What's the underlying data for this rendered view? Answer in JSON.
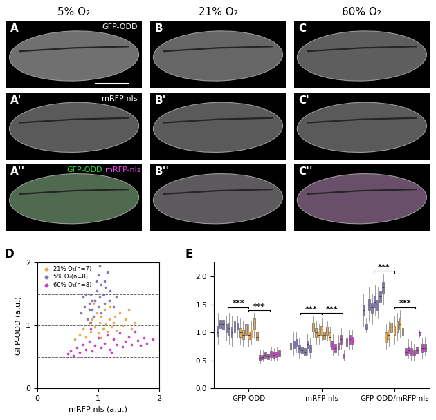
{
  "column_headers": [
    "5% O₂",
    "21% O₂",
    "60% O₂"
  ],
  "image_rows": [
    {
      "panel_labels": [
        "A",
        "B",
        "C"
      ],
      "channel_texts": [
        {
          "text": "GFP-ODD",
          "color": "#ffffff"
        }
      ]
    },
    {
      "panel_labels": [
        "A'",
        "B'",
        "C'"
      ],
      "channel_texts": [
        {
          "text": "mRFP-nls",
          "color": "#ffffff"
        }
      ]
    },
    {
      "panel_labels": [
        "A''",
        "B''",
        "C''"
      ],
      "channel_texts": [
        {
          "text": "GFP-ODD",
          "color": "#33dd33"
        },
        {
          "text": "mRFP-nls",
          "color": "#ee44ee"
        }
      ]
    }
  ],
  "chart_data": [
    {
      "type": "scatter",
      "panel_label": "D",
      "x_label": "mRFP-nls (a.u.)",
      "y_label": "GFP-ODD (a.u.)",
      "xlim": [
        0,
        2
      ],
      "xticks": [
        0,
        1,
        2
      ],
      "ylim": [
        0,
        2
      ],
      "yticks": [
        0,
        1,
        2
      ],
      "marker": "o",
      "legend": "upper left",
      "reference_lines": {
        "values": [
          0.5,
          1,
          1.5
        ],
        "line_style": "dashed"
      },
      "series": [
        {
          "name": "21% O₂(n=7)",
          "color": "#e8a94f",
          "x": [
            0.62,
            0.7,
            0.75,
            0.8,
            0.85,
            0.88,
            0.9,
            0.95,
            0.98,
            1.0,
            1.02,
            1.05,
            1.08,
            1.1,
            1.12,
            1.15,
            1.18,
            1.2,
            1.22,
            1.25,
            1.28,
            1.3,
            1.35,
            1.4,
            1.45,
            1.5,
            1.55,
            1.6,
            0.92,
            1.05
          ],
          "y": [
            0.78,
            0.85,
            0.95,
            0.82,
            1.05,
            0.9,
            1.1,
            0.98,
            1.2,
            0.88,
            1.05,
            1.15,
            0.95,
            1.25,
            1.02,
            0.9,
            1.1,
            1.3,
            0.98,
            1.05,
            1.15,
            0.92,
            1.2,
            1.0,
            1.1,
            1.25,
            0.95,
            1.05,
            1.35,
            0.8
          ]
        },
        {
          "name": "5% O₂(n=8)",
          "color": "#7b77c0",
          "x": [
            0.72,
            0.75,
            0.78,
            0.8,
            0.82,
            0.85,
            0.85,
            0.88,
            0.9,
            0.9,
            0.92,
            0.95,
            0.97,
            0.98,
            1.0,
            1.0,
            1.02,
            1.05,
            1.05,
            1.08,
            1.1,
            1.12,
            1.15,
            1.18,
            1.2,
            1.25,
            1.3,
            0.88,
            1.03,
            1.1
          ],
          "y": [
            1.2,
            1.45,
            1.3,
            1.5,
            1.1,
            1.35,
            1.25,
            1.5,
            1.4,
            1.25,
            1.15,
            1.4,
            1.7,
            1.55,
            1.3,
            1.8,
            1.45,
            1.65,
            1.2,
            1.5,
            1.35,
            1.6,
            1.85,
            1.4,
            1.55,
            1.3,
            1.45,
            1.05,
            1.95,
            1.7
          ]
        },
        {
          "name": "60% O₂(n=8)",
          "color": "#c63fc6",
          "x": [
            0.5,
            0.55,
            0.6,
            0.65,
            0.7,
            0.75,
            0.8,
            0.85,
            0.9,
            0.95,
            1.0,
            1.05,
            1.1,
            1.15,
            1.2,
            1.25,
            1.3,
            1.35,
            1.4,
            1.45,
            1.5,
            1.55,
            1.6,
            1.65,
            1.7,
            1.75,
            1.8,
            1.9,
            0.88,
            1.22
          ],
          "y": [
            0.55,
            0.6,
            0.52,
            0.65,
            0.58,
            0.7,
            0.62,
            0.75,
            0.6,
            0.68,
            0.8,
            0.65,
            0.72,
            0.85,
            0.62,
            0.78,
            0.7,
            0.88,
            0.66,
            0.75,
            0.82,
            0.7,
            0.9,
            0.76,
            0.68,
            0.8,
            0.72,
            0.78,
            0.95,
            0.58
          ]
        }
      ]
    },
    {
      "type": "box",
      "panel_label": "E",
      "categories": [
        "GFP-ODD",
        "mRFP-nls",
        "GFP-ODD/mRFP-nls"
      ],
      "ylim": [
        0,
        2.25
      ],
      "yticks": [
        {
          "value": 0,
          "label": "0.0"
        },
        {
          "value": 0.5,
          "label": "0.5"
        },
        {
          "value": 1,
          "label": "1.0"
        },
        {
          "value": 1.5,
          "label": "1.5"
        },
        {
          "value": 2,
          "label": "2.0"
        }
      ],
      "series": [
        {
          "name": "5% O₂",
          "color": "#7b77c0",
          "boxes": [
            [
              [
                0.8,
                0.93,
                1.0,
                1.12,
                1.35
              ],
              [
                0.95,
                1.08,
                1.15,
                1.22,
                1.4
              ],
              [
                0.9,
                1.05,
                1.15,
                1.22,
                1.4
              ],
              [
                0.85,
                1.0,
                1.1,
                1.15,
                1.3
              ],
              [
                0.8,
                0.95,
                1.08,
                1.18,
                1.35
              ],
              [
                0.75,
                0.9,
                1.0,
                1.1,
                1.3
              ],
              [
                0.85,
                1.0,
                1.1,
                1.2,
                1.35
              ],
              [
                0.9,
                1.05,
                1.1,
                1.18,
                1.3
              ]
            ],
            [
              [
                0.6,
                0.7,
                0.75,
                0.82,
                0.95
              ],
              [
                0.6,
                0.72,
                0.78,
                0.85,
                1.0
              ],
              [
                0.65,
                0.75,
                0.82,
                0.88,
                1.0
              ],
              [
                0.55,
                0.65,
                0.72,
                0.78,
                0.9
              ],
              [
                0.55,
                0.62,
                0.68,
                0.75,
                0.88
              ],
              [
                0.5,
                0.6,
                0.65,
                0.72,
                0.85
              ],
              [
                0.6,
                0.72,
                0.8,
                0.85,
                0.98
              ],
              [
                0.55,
                0.65,
                0.7,
                0.78,
                0.9
              ]
            ],
            [
              [
                1.1,
                1.3,
                1.4,
                1.5,
                1.7
              ],
              [
                1.0,
                1.05,
                1.1,
                1.15,
                1.25
              ],
              [
                1.2,
                1.4,
                1.5,
                1.6,
                1.8
              ],
              [
                1.15,
                1.35,
                1.45,
                1.52,
                1.7
              ],
              [
                1.3,
                1.45,
                1.55,
                1.65,
                1.85
              ],
              [
                1.25,
                1.4,
                1.5,
                1.58,
                1.8
              ],
              [
                1.4,
                1.55,
                1.65,
                1.75,
                1.95
              ],
              [
                1.5,
                1.7,
                1.8,
                1.9,
                2.05
              ]
            ]
          ]
        },
        {
          "name": "21% O₂",
          "color": "#e8a94f",
          "boxes": [
            [
              [
                0.8,
                0.92,
                1.0,
                1.08,
                1.25
              ],
              [
                0.75,
                0.88,
                0.95,
                1.05,
                1.2
              ],
              [
                0.8,
                0.95,
                1.05,
                1.15,
                1.3
              ],
              [
                0.75,
                0.88,
                0.95,
                1.02,
                1.15
              ],
              [
                0.8,
                0.9,
                0.98,
                1.05,
                1.2
              ],
              [
                0.9,
                1.05,
                1.18,
                1.25,
                1.35
              ],
              [
                0.75,
                0.85,
                0.92,
                1.0,
                1.15
              ]
            ],
            [
              [
                0.9,
                1.02,
                1.1,
                1.18,
                1.3
              ],
              [
                0.8,
                0.92,
                1.0,
                1.08,
                1.2
              ],
              [
                0.8,
                0.9,
                0.95,
                1.02,
                1.15
              ],
              [
                0.85,
                0.95,
                1.05,
                1.12,
                1.25
              ],
              [
                0.75,
                0.88,
                0.95,
                1.0,
                1.15
              ],
              [
                0.85,
                0.95,
                1.02,
                1.1,
                1.2
              ],
              [
                0.75,
                0.85,
                0.92,
                1.0,
                1.1
              ]
            ],
            [
              [
                0.7,
                0.82,
                0.9,
                1.0,
                1.15
              ],
              [
                0.75,
                0.88,
                0.95,
                1.05,
                1.2
              ],
              [
                0.85,
                1.0,
                1.1,
                1.18,
                1.35
              ],
              [
                0.8,
                0.95,
                1.05,
                1.12,
                1.3
              ],
              [
                0.85,
                1.0,
                1.1,
                1.2,
                1.35
              ],
              [
                0.9,
                1.05,
                1.15,
                1.25,
                1.4
              ],
              [
                0.85,
                0.95,
                1.02,
                1.08,
                1.2
              ]
            ]
          ]
        },
        {
          "name": "60% O₂",
          "color": "#c63fc6",
          "boxes": [
            [
              [
                0.45,
                0.5,
                0.55,
                0.6,
                0.7
              ],
              [
                0.48,
                0.52,
                0.56,
                0.6,
                0.68
              ],
              [
                0.5,
                0.55,
                0.6,
                0.65,
                0.72
              ],
              [
                0.47,
                0.52,
                0.57,
                0.62,
                0.7
              ],
              [
                0.5,
                0.56,
                0.62,
                0.67,
                0.75
              ],
              [
                0.5,
                0.55,
                0.6,
                0.66,
                0.72
              ],
              [
                0.5,
                0.56,
                0.62,
                0.66,
                0.73
              ],
              [
                0.52,
                0.57,
                0.62,
                0.68,
                0.75
              ]
            ],
            [
              [
                0.6,
                0.7,
                0.78,
                0.85,
                0.98
              ],
              [
                0.55,
                0.65,
                0.72,
                0.8,
                0.92
              ],
              [
                0.6,
                0.7,
                0.75,
                0.82,
                0.95
              ],
              [
                0.7,
                0.8,
                0.88,
                0.95,
                1.08
              ],
              [
                0.5,
                0.55,
                0.58,
                0.62,
                0.7
              ],
              [
                0.65,
                0.75,
                0.82,
                0.9,
                1.0
              ],
              [
                0.7,
                0.8,
                0.88,
                0.95,
                1.05
              ],
              [
                0.7,
                0.8,
                0.85,
                0.92,
                1.05
              ]
            ],
            [
              [
                0.5,
                0.6,
                0.65,
                0.72,
                0.85
              ],
              [
                0.55,
                0.62,
                0.68,
                0.75,
                0.88
              ],
              [
                0.5,
                0.6,
                0.66,
                0.72,
                0.85
              ],
              [
                0.5,
                0.58,
                0.62,
                0.68,
                0.8
              ],
              [
                0.55,
                0.62,
                0.68,
                0.75,
                0.88
              ],
              [
                0.9,
                0.95,
                1.0,
                1.02,
                1.05
              ],
              [
                0.55,
                0.65,
                0.72,
                0.8,
                0.9
              ],
              [
                0.58,
                0.66,
                0.72,
                0.8,
                0.92
              ]
            ]
          ]
        }
      ],
      "significance": [
        {
          "category": "GFP-ODD",
          "between": [
            "5% O₂",
            "21% O₂"
          ],
          "label": "***"
        },
        {
          "category": "GFP-ODD",
          "between": [
            "21% O₂",
            "60% O₂"
          ],
          "label": "***"
        },
        {
          "category": "mRFP-nls",
          "between": [
            "5% O₂",
            "21% O₂"
          ],
          "label": "***"
        },
        {
          "category": "mRFP-nls",
          "between": [
            "21% O₂",
            "60% O₂"
          ],
          "label": "***"
        },
        {
          "category": "GFP-ODD/mRFP-nls",
          "between": [
            "5% O₂",
            "21% O₂"
          ],
          "label": "***"
        },
        {
          "category": "GFP-ODD/mRFP-nls",
          "between": [
            "21% O₂",
            "60% O₂"
          ],
          "label": "***"
        }
      ]
    }
  ]
}
